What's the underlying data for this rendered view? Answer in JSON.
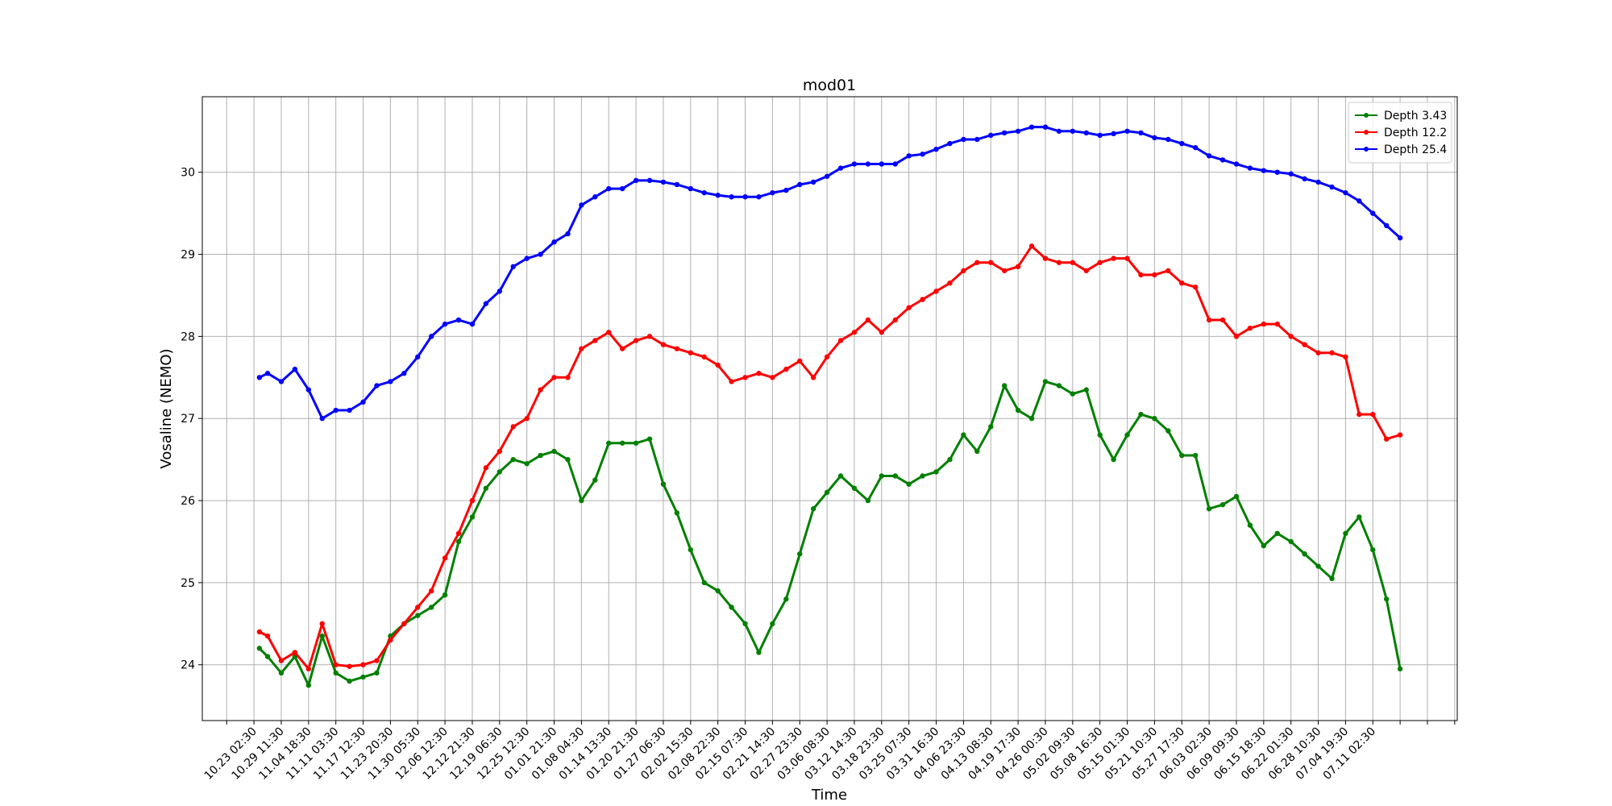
{
  "chart_data": {
    "type": "line",
    "title": "mod01",
    "x_label": "Time",
    "y_label": "Vosaline (NEMO)",
    "x": [
      30,
      75,
      150,
      225,
      300,
      375,
      450,
      525,
      600,
      675,
      750,
      825,
      900,
      975,
      1050,
      1125,
      1200,
      1275,
      1350,
      1425,
      1500,
      1575,
      1650,
      1725,
      1800,
      1875,
      1950,
      2025,
      2100,
      2175,
      2250,
      2325,
      2400,
      2475,
      2550,
      2625,
      2700,
      2775,
      2850,
      2925,
      3000,
      3075,
      3150,
      3225,
      3300,
      3375,
      3450,
      3525,
      3600,
      3675,
      3750,
      3825,
      3900,
      3975,
      4050,
      4125,
      4200,
      4275,
      4350,
      4425,
      4500,
      4575,
      4650,
      4725,
      4800,
      4875,
      4950,
      5025,
      5100,
      5175,
      5250,
      5325,
      5400,
      5475,
      5550,
      5625,
      5700,
      5775,
      5850,
      5925,
      6000,
      6075,
      6150,
      6225,
      6300
    ],
    "series": [
      {
        "name": "Depth 3.43",
        "color": "green",
        "values": [
          24.2,
          24.1,
          23.9,
          24.1,
          23.75,
          24.35,
          23.9,
          23.8,
          23.85,
          23.9,
          24.35,
          24.5,
          24.6,
          24.7,
          24.85,
          25.5,
          25.8,
          26.15,
          26.35,
          26.5,
          26.45,
          26.55,
          26.6,
          26.5,
          26.0,
          26.25,
          26.7,
          26.7,
          26.7,
          26.75,
          26.2,
          25.85,
          25.4,
          25.0,
          24.9,
          24.7,
          24.5,
          24.15,
          24.5,
          24.8,
          25.35,
          25.9,
          26.1,
          26.3,
          26.15,
          26.0,
          26.3,
          26.3,
          26.2,
          26.3,
          26.35,
          26.5,
          26.8,
          26.6,
          26.9,
          27.4,
          27.1,
          27.0,
          27.45,
          27.4,
          27.3,
          27.35,
          26.8,
          26.5,
          26.8,
          27.05,
          27.0,
          26.85,
          26.55,
          26.55,
          25.9,
          25.95,
          26.05,
          25.7,
          25.45,
          25.6,
          25.5,
          25.35,
          25.2,
          25.05,
          25.6,
          25.8,
          25.4,
          24.8,
          23.95
        ]
      },
      {
        "name": "Depth 12.2",
        "color": "red",
        "values": [
          24.4,
          24.35,
          24.05,
          24.15,
          23.95,
          24.5,
          24.0,
          23.98,
          24.0,
          24.05,
          24.3,
          24.5,
          24.7,
          24.9,
          25.3,
          25.6,
          26.0,
          26.4,
          26.6,
          26.9,
          27.0,
          27.35,
          27.5,
          27.5,
          27.85,
          27.95,
          28.05,
          27.85,
          27.95,
          28.0,
          27.9,
          27.85,
          27.8,
          27.75,
          27.65,
          27.45,
          27.5,
          27.55,
          27.5,
          27.6,
          27.7,
          27.5,
          27.75,
          27.95,
          28.05,
          28.2,
          28.05,
          28.2,
          28.35,
          28.45,
          28.55,
          28.65,
          28.8,
          28.9,
          28.9,
          28.8,
          28.85,
          29.1,
          28.95,
          28.9,
          28.9,
          28.8,
          28.9,
          28.95,
          28.95,
          28.75,
          28.75,
          28.8,
          28.65,
          28.6,
          28.2,
          28.2,
          28.0,
          28.1,
          28.15,
          28.15,
          28.0,
          27.9,
          27.8,
          27.8,
          27.75,
          27.05,
          27.05,
          26.75,
          26.8
        ]
      },
      {
        "name": "Depth 25.4",
        "color": "blue",
        "values": [
          27.5,
          27.55,
          27.45,
          27.6,
          27.35,
          27.0,
          27.1,
          27.1,
          27.2,
          27.4,
          27.45,
          27.55,
          27.75,
          28.0,
          28.15,
          28.2,
          28.15,
          28.4,
          28.55,
          28.85,
          28.95,
          29.0,
          29.15,
          29.25,
          29.6,
          29.7,
          29.8,
          29.8,
          29.9,
          29.9,
          29.88,
          29.85,
          29.8,
          29.75,
          29.72,
          29.7,
          29.7,
          29.7,
          29.75,
          29.78,
          29.85,
          29.88,
          29.95,
          30.05,
          30.1,
          30.1,
          30.1,
          30.1,
          30.2,
          30.22,
          30.28,
          30.35,
          30.4,
          30.4,
          30.45,
          30.48,
          30.5,
          30.55,
          30.55,
          30.5,
          30.5,
          30.48,
          30.45,
          30.47,
          30.5,
          30.48,
          30.42,
          30.4,
          30.35,
          30.3,
          30.2,
          30.15,
          30.1,
          30.05,
          30.02,
          30.0,
          29.98,
          29.92,
          29.88,
          29.82,
          29.75,
          29.65,
          29.5,
          29.35,
          29.2
        ]
      }
    ],
    "xlim": [
      -284,
      6614
    ],
    "xticks": [
      {
        "value": -150,
        "label": null
      },
      {
        "value": 0,
        "label": "10.23 02:30"
      },
      {
        "value": 150,
        "label": "10.29 11:30"
      },
      {
        "value": 300,
        "label": "11.04 18:30"
      },
      {
        "value": 450,
        "label": "11.11 03:30"
      },
      {
        "value": 600,
        "label": "11.17 12:30"
      },
      {
        "value": 750,
        "label": "11.23 20:30"
      },
      {
        "value": 900,
        "label": "11.30 05:30"
      },
      {
        "value": 1050,
        "label": "12.06 12:30"
      },
      {
        "value": 1200,
        "label": "12.12 21:30"
      },
      {
        "value": 1350,
        "label": "12.19 06:30"
      },
      {
        "value": 1500,
        "label": "12.25 12:30"
      },
      {
        "value": 1650,
        "label": "01.01 21:30"
      },
      {
        "value": 1800,
        "label": "01.08 04:30"
      },
      {
        "value": 1950,
        "label": "01.14 13:30"
      },
      {
        "value": 2100,
        "label": "01.20 21:30"
      },
      {
        "value": 2250,
        "label": "01.27 06:30"
      },
      {
        "value": 2400,
        "label": "02.02 15:30"
      },
      {
        "value": 2550,
        "label": "02.08 22:30"
      },
      {
        "value": 2700,
        "label": "02.15 07:30"
      },
      {
        "value": 2850,
        "label": "02.21 14:30"
      },
      {
        "value": 3000,
        "label": "02.27 23:30"
      },
      {
        "value": 3150,
        "label": "03.06 08:30"
      },
      {
        "value": 3300,
        "label": "03.12 14:30"
      },
      {
        "value": 3450,
        "label": "03.18 23:30"
      },
      {
        "value": 3600,
        "label": "03.25 07:30"
      },
      {
        "value": 3750,
        "label": "03.31 16:30"
      },
      {
        "value": 3900,
        "label": "04.06 23:30"
      },
      {
        "value": 4050,
        "label": "04.13 08:30"
      },
      {
        "value": 4200,
        "label": "04.19 17:30"
      },
      {
        "value": 4350,
        "label": "04.26 00:30"
      },
      {
        "value": 4500,
        "label": "05.02 09:30"
      },
      {
        "value": 4650,
        "label": "05.08 16:30"
      },
      {
        "value": 4800,
        "label": "05.15 01:30"
      },
      {
        "value": 4950,
        "label": "05.21 10:30"
      },
      {
        "value": 5100,
        "label": "05.27 17:30"
      },
      {
        "value": 5250,
        "label": "06.03 02:30"
      },
      {
        "value": 5400,
        "label": "06.09 09:30"
      },
      {
        "value": 5550,
        "label": "06.15 18:30"
      },
      {
        "value": 5700,
        "label": "06.22 01:30"
      },
      {
        "value": 5850,
        "label": "06.28 10:30"
      },
      {
        "value": 6000,
        "label": "07.04 19:30"
      },
      {
        "value": 6150,
        "label": "07.11 02:30"
      },
      {
        "value": 6300,
        "label": null
      },
      {
        "value": 6450,
        "label": null
      },
      {
        "value": 6600,
        "label": null
      }
    ],
    "ylim": [
      23.32,
      30.92
    ],
    "yticks": [
      24,
      25,
      26,
      27,
      28,
      29,
      30
    ],
    "grid": true,
    "legend": "upper right"
  }
}
